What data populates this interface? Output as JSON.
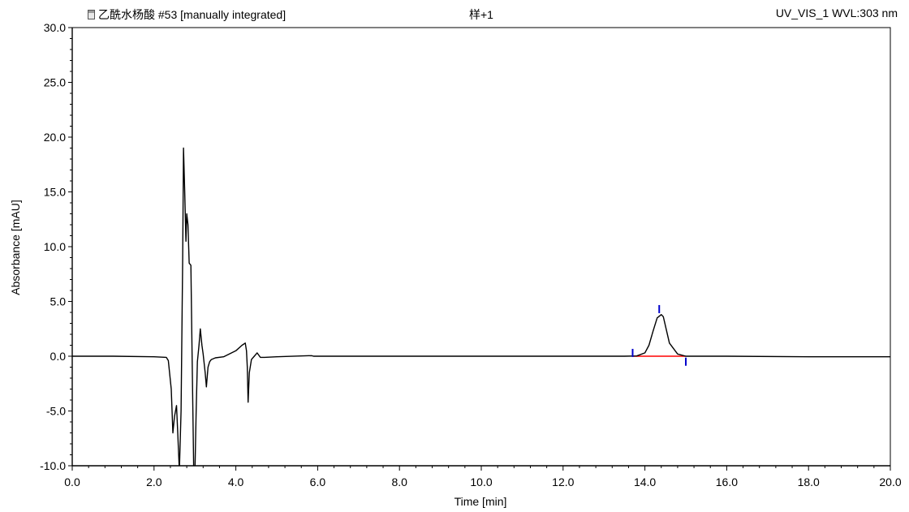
{
  "header": {
    "left_label": "乙酰水杨酸 #53 [manually integrated]",
    "middle_label": "样+1",
    "right_label": "UV_VIS_1 WVL:303 nm",
    "icon": "document-icon"
  },
  "chart_data": {
    "type": "line",
    "title": "",
    "xlabel": "Time [min]",
    "ylabel": "Absorbance [mAU]",
    "xlim": [
      0.0,
      20.0
    ],
    "ylim": [
      -10.0,
      30.0
    ],
    "x_ticks": [
      0.0,
      2.0,
      4.0,
      6.0,
      8.0,
      10.0,
      12.0,
      14.0,
      16.0,
      18.0,
      20.0
    ],
    "x_tick_labels": [
      "0.0",
      "2.0",
      "4.0",
      "6.0",
      "8.0",
      "10.0",
      "12.0",
      "14.0",
      "16.0",
      "18.0",
      "20.0"
    ],
    "y_ticks": [
      -10.0,
      -5.0,
      0.0,
      5.0,
      10.0,
      15.0,
      20.0,
      25.0,
      30.0
    ],
    "y_tick_labels": [
      "-10.0",
      "-5.0",
      "0.0",
      "5.0",
      "10.0",
      "15.0",
      "20.0",
      "25.0",
      "30.0"
    ],
    "grid": false,
    "legend": "none",
    "series": [
      {
        "color": "#000000",
        "x": [
          0.0,
          1.0,
          2.0,
          2.3,
          2.35,
          2.42,
          2.46,
          2.5,
          2.55,
          2.58,
          2.62,
          2.66,
          2.7,
          2.72,
          2.75,
          2.78,
          2.8,
          2.83,
          2.86,
          2.9,
          2.93,
          2.97,
          3.0,
          3.03,
          3.06,
          3.1,
          3.13,
          3.17,
          3.2,
          3.25,
          3.28,
          3.32,
          3.36,
          3.4,
          3.5,
          3.7,
          4.0,
          4.15,
          4.23,
          4.26,
          4.28,
          4.3,
          4.33,
          4.38,
          4.45,
          4.52,
          4.6,
          4.7,
          5.0,
          5.85,
          5.9,
          6.0,
          8.0,
          10.0,
          12.0,
          13.5,
          13.8,
          14.0,
          14.1,
          14.2,
          14.3,
          14.4,
          14.45,
          14.5,
          14.6,
          14.8,
          15.0,
          16.0,
          18.0,
          20.0
        ],
        "y": [
          0.0,
          0.0,
          -0.05,
          -0.1,
          -0.4,
          -3.0,
          -7.0,
          -5.5,
          -4.5,
          -7.0,
          -10.5,
          -5.0,
          9.0,
          19.0,
          15.0,
          10.5,
          13.0,
          12.0,
          8.5,
          8.3,
          0.0,
          -10.5,
          -10.5,
          -5.0,
          -0.5,
          1.0,
          2.5,
          1.0,
          0.2,
          -1.5,
          -2.8,
          -1.0,
          -0.5,
          -0.3,
          -0.15,
          -0.05,
          0.5,
          1.0,
          1.2,
          0.5,
          -1.0,
          -4.2,
          -1.5,
          -0.3,
          0.0,
          0.3,
          -0.1,
          -0.1,
          -0.05,
          0.05,
          0.0,
          0.0,
          0.0,
          0.0,
          0.0,
          0.0,
          0.02,
          0.3,
          1.0,
          2.3,
          3.5,
          3.8,
          3.6,
          2.8,
          1.2,
          0.2,
          0.0,
          0.0,
          -0.05,
          -0.05
        ]
      }
    ],
    "annotations": [
      {
        "type": "baseline",
        "color": "#ff0000",
        "x": [
          13.7,
          15.0
        ],
        "y": [
          0.0,
          0.0
        ]
      },
      {
        "type": "peak-start-marker",
        "color": "#0000cc",
        "x": 13.7,
        "y": 0.3
      },
      {
        "type": "peak-apex-marker",
        "color": "#0000cc",
        "x": 14.35,
        "y": 4.3
      },
      {
        "type": "peak-end-marker",
        "color": "#0000cc",
        "x": 15.0,
        "y": -0.5
      }
    ]
  }
}
